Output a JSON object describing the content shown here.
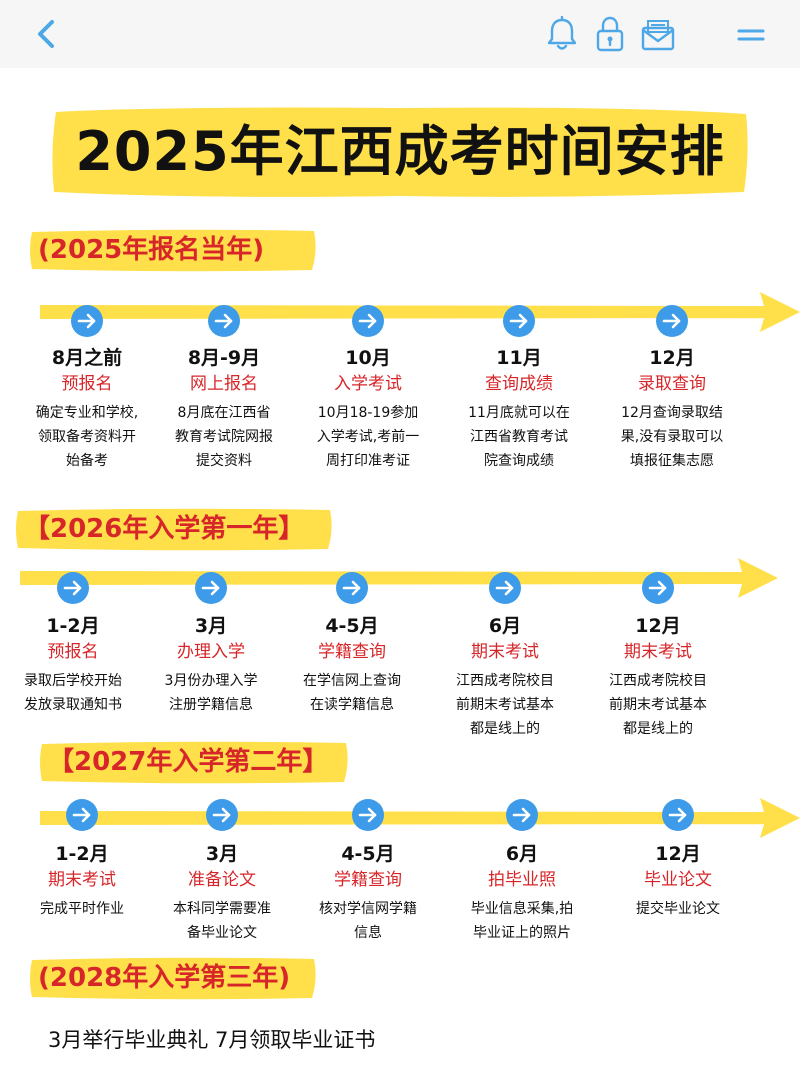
{
  "header": {
    "back_icon": "chevron-left-icon",
    "icons": [
      "bell-icon",
      "lock-icon",
      "mail-icon",
      "menu-icon"
    ],
    "icon_color": "#4ea8e8"
  },
  "title": "2025年江西成考时间安排",
  "colors": {
    "highlight": "#ffe04a",
    "node": "#3d9be9",
    "accent_red": "#d7262a"
  },
  "sections": [
    {
      "label": "(2025年报名当年)",
      "steps": [
        {
          "when": "8月之前",
          "what": "预报名",
          "desc": [
            "确定专业和学校,",
            "领取备考资料开",
            "始备考"
          ]
        },
        {
          "when": "8月-9月",
          "what": "网上报名",
          "desc": [
            "8月底在江西省",
            "教育考试院网报",
            "提交资料"
          ]
        },
        {
          "when": "10月",
          "what": "入学考试",
          "desc": [
            "10月18-19参加",
            "入学考试,考前一",
            "周打印准考证"
          ]
        },
        {
          "when": "11月",
          "what": "查询成绩",
          "desc": [
            "11月底就可以在",
            "江西省教育考试",
            "院查询成绩"
          ]
        },
        {
          "when": "12月",
          "what": "录取查询",
          "desc": [
            "12月查询录取结",
            "果,没有录取可以",
            "填报征集志愿"
          ]
        }
      ]
    },
    {
      "label": "【2026年入学第一年】",
      "steps": [
        {
          "when": "1-2月",
          "what": "预报名",
          "desc": [
            "录取后学校开始",
            "发放录取通知书"
          ]
        },
        {
          "when": "3月",
          "what": "办理入学",
          "desc": [
            "3月份办理入学",
            "注册学籍信息"
          ]
        },
        {
          "when": "4-5月",
          "what": "学籍查询",
          "desc": [
            "在学信网上查询",
            "在读学籍信息"
          ]
        },
        {
          "when": "6月",
          "what": "期末考试",
          "desc": [
            "江西成考院校目",
            "前期末考试基本",
            "都是线上的"
          ]
        },
        {
          "when": "12月",
          "what": "期末考试",
          "desc": [
            "江西成考院校目",
            "前期末考试基本",
            "都是线上的"
          ]
        }
      ]
    },
    {
      "label": "【2027年入学第二年】",
      "steps": [
        {
          "when": "1-2月",
          "what": "期末考试",
          "desc": [
            "完成平时作业"
          ]
        },
        {
          "when": "3月",
          "what": "准备论文",
          "desc": [
            "本科同学需要准",
            "备毕业论文"
          ]
        },
        {
          "when": "4-5月",
          "what": "学籍查询",
          "desc": [
            "核对学信网学籍",
            "信息"
          ]
        },
        {
          "when": "6月",
          "what": "拍毕业照",
          "desc": [
            "毕业信息采集,拍",
            "毕业证上的照片"
          ]
        },
        {
          "when": "12月",
          "what": "毕业论文",
          "desc": [
            "提交毕业论文"
          ]
        }
      ]
    },
    {
      "label": "(2028年入学第三年)",
      "steps": []
    }
  ],
  "final_note": "3月举行毕业典礼 7月领取毕业证书"
}
